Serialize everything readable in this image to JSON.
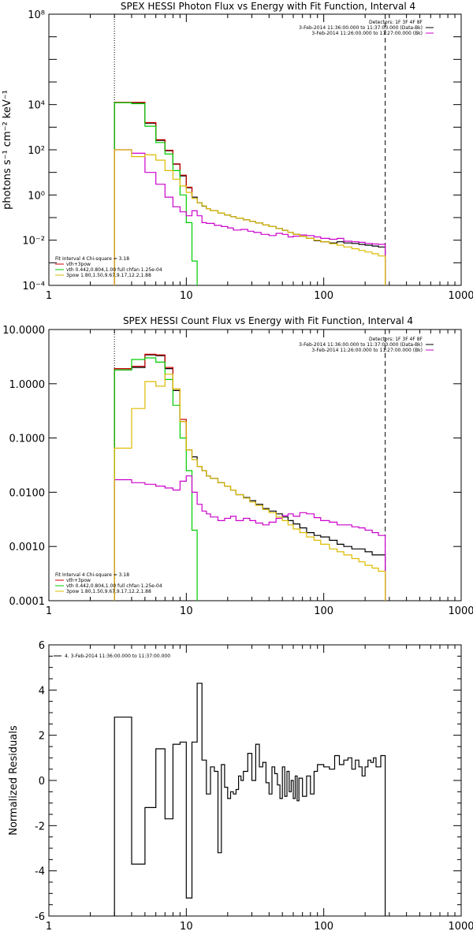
{
  "chart_data": [
    {
      "type": "line",
      "title": "SPEX HESSI Photon Flux vs Energy with Fit Function, Interval 4",
      "xlabel": "",
      "ylabel": "photons s⁻¹ cm⁻² keV⁻¹",
      "xscale": "log",
      "yscale": "log",
      "xlim": [
        1,
        1000
      ],
      "ylim": [
        0.0001,
        100000000
      ],
      "xticks": [
        1,
        10,
        100,
        1000
      ],
      "xtick_labels": [
        "1",
        "10",
        "100",
        "1000"
      ],
      "yticks": [
        0.0001,
        0.01,
        1,
        100,
        10000,
        100000000
      ],
      "ytick_labels": [
        "10⁻⁴",
        "10⁻²",
        "10⁰",
        "10²",
        "10⁴",
        "10⁸"
      ],
      "vlines": [
        {
          "x": 3,
          "style": "dotted"
        },
        {
          "x": 280,
          "style": "dashed"
        }
      ],
      "legend_right": [
        "Detectors: 1F 3F 4F 8F",
        "3-Feb-2014 11:36:00.000 to 11:37:00.000 (Data-Bk)",
        "3-Feb-2014 11:26:00.000 to 11:27:00.000 (Bk)"
      ],
      "legend_left": [
        "Fit Interval 4   Chi-square = 3.18",
        "vth+3pow",
        "vth 0.442,0.804,1.00  full chfan 1.25e-04",
        "3pow 1.80,1.50,9.67,9.17,12.2,1.88"
      ],
      "series": [
        {
          "color": "#000000",
          "x": [
            3,
            4,
            5,
            6,
            7,
            8,
            9,
            10,
            11,
            12,
            13,
            14,
            15,
            17,
            19,
            21,
            23,
            26,
            29,
            32,
            36,
            40,
            45,
            50,
            55,
            60,
            67,
            75,
            85,
            95,
            110,
            125,
            140,
            160,
            180,
            200,
            225,
            250,
            280
          ],
          "y": [
            12000,
            12000,
            1500,
            260,
            90,
            23,
            7,
            2.1,
            0.8,
            0.45,
            0.32,
            0.25,
            0.2,
            0.16,
            0.13,
            0.11,
            0.095,
            0.08,
            0.068,
            0.058,
            0.048,
            0.04,
            0.033,
            0.027,
            0.022,
            0.018,
            0.015,
            0.012,
            0.0095,
            0.0085,
            0.0075,
            0.0085,
            0.0075,
            0.0072,
            0.0065,
            0.006,
            0.0055,
            0.005,
            0.005
          ]
        },
        {
          "color": "#cc0000",
          "x": [
            3,
            4,
            5,
            6,
            7,
            8,
            9,
            10,
            11
          ],
          "y": [
            12500,
            12500,
            1600,
            280,
            95,
            24,
            7.5,
            2.2,
            0.85
          ]
        },
        {
          "color": "#00cc00",
          "x": [
            3,
            4,
            5,
            6,
            7,
            8,
            9,
            10,
            11,
            12
          ],
          "y": [
            12000,
            11000,
            1100,
            210,
            65,
            12,
            1,
            0.06,
            0.0012,
            0.0001
          ]
        },
        {
          "color": "#cc00cc",
          "x": [
            3,
            4,
            5,
            6,
            7,
            8,
            9,
            10,
            11,
            12,
            13,
            14,
            16,
            18,
            20,
            22,
            25,
            28,
            31,
            35,
            40,
            45,
            50,
            55,
            60,
            67,
            75,
            85,
            95,
            110,
            125,
            140,
            160,
            180,
            200,
            225,
            250,
            280
          ],
          "y": [
            100,
            70,
            10,
            3,
            0.8,
            0.3,
            0.18,
            0.12,
            0.2,
            0.12,
            0.06,
            0.055,
            0.045,
            0.04,
            0.035,
            0.028,
            0.03,
            0.025,
            0.022,
            0.018,
            0.016,
            0.02,
            0.018,
            0.014,
            0.015,
            0.017,
            0.016,
            0.014,
            0.012,
            0.011,
            0.012,
            0.009,
            0.0085,
            0.008,
            0.0072,
            0.0068,
            0.0065,
            0.006
          ]
        },
        {
          "color": "#ddbb00",
          "x": [
            3,
            4,
            5,
            6,
            7,
            8,
            9,
            10,
            11,
            12,
            13,
            14,
            15,
            17,
            19,
            21,
            23,
            26,
            29,
            32,
            36,
            40,
            45,
            50,
            55,
            60,
            67,
            75,
            85,
            95,
            110,
            125,
            140,
            160,
            180,
            200,
            225,
            250,
            280
          ],
          "y": [
            100,
            50,
            60,
            35,
            12,
            5,
            2.5,
            1.3,
            0.7,
            0.45,
            0.33,
            0.25,
            0.2,
            0.16,
            0.13,
            0.11,
            0.095,
            0.08,
            0.068,
            0.058,
            0.048,
            0.04,
            0.033,
            0.027,
            0.022,
            0.018,
            0.015,
            0.012,
            0.01,
            0.0085,
            0.007,
            0.006,
            0.005,
            0.0042,
            0.0035,
            0.003,
            0.0025,
            0.002,
            0.0015
          ]
        }
      ]
    },
    {
      "type": "line",
      "title": "SPEX HESSI Count Flux vs Energy with Fit Function, Interval 4",
      "xlabel": "",
      "ylabel": "",
      "xscale": "log",
      "yscale": "log",
      "xlim": [
        1,
        1000
      ],
      "ylim": [
        0.0001,
        10
      ],
      "xticks": [
        1,
        10,
        100,
        1000
      ],
      "xtick_labels": [
        "1",
        "10",
        "100",
        "1000"
      ],
      "yticks": [
        0.0001,
        0.001,
        0.01,
        0.1,
        1,
        10
      ],
      "ytick_labels": [
        "0.0001",
        "0.0010",
        "0.0100",
        "0.1000",
        "1.0000",
        "10.0000"
      ],
      "vlines": [
        {
          "x": 3,
          "style": "dotted"
        },
        {
          "x": 280,
          "style": "dashed"
        }
      ],
      "legend_right": [
        "Detectors: 1F 3F 4F 8F",
        "3-Feb-2014 11:36:00.000 to 11:37:00.000 (Data-Bk)",
        "3-Feb-2014 11:26:00.000 to 11:27:00.000 (Bk)"
      ],
      "legend_left": [
        "Fit Interval 4   Chi-square = 3.18",
        "vth+3pow",
        "vth 0.442,0.804,1.00  full chfan 1.25e-04",
        "3pow 1.80,1.50,9.67,9.17,12.2,1.88"
      ],
      "series": [
        {
          "color": "#000000",
          "x": [
            3,
            4,
            5,
            6,
            7,
            8,
            9,
            10,
            11,
            12,
            13,
            14,
            15,
            17,
            19,
            21,
            23,
            26,
            29,
            32,
            36,
            40,
            45,
            50,
            55,
            60,
            67,
            75,
            85,
            95,
            110,
            125,
            140,
            160,
            180,
            200,
            225,
            250,
            280
          ],
          "y": [
            1.8,
            2.0,
            3.4,
            3.3,
            1.9,
            0.75,
            0.2,
            0.06,
            0.045,
            0.03,
            0.025,
            0.02,
            0.018,
            0.015,
            0.013,
            0.011,
            0.009,
            0.008,
            0.007,
            0.006,
            0.005,
            0.0045,
            0.004,
            0.0035,
            0.003,
            0.0026,
            0.0022,
            0.0018,
            0.0016,
            0.0015,
            0.0013,
            0.0011,
            0.001,
            0.0009,
            0.0009,
            0.0008,
            0.0007,
            0.0007,
            0.0007
          ]
        },
        {
          "color": "#cc0000",
          "x": [
            3,
            4,
            5,
            6,
            7,
            8,
            9,
            10
          ],
          "y": [
            1.9,
            2.1,
            3.5,
            3.4,
            2.0,
            0.8,
            0.22,
            0.065
          ]
        },
        {
          "color": "#00cc00",
          "x": [
            3,
            4,
            5,
            6,
            7,
            8,
            9,
            10,
            11,
            12
          ],
          "y": [
            1.8,
            2.8,
            3.0,
            2.5,
            1.2,
            0.4,
            0.1,
            0.025,
            0.002,
            0.0001
          ]
        },
        {
          "color": "#cc00cc",
          "x": [
            3,
            4,
            5,
            6,
            7,
            8,
            9,
            10,
            11,
            12,
            13,
            14,
            15,
            17,
            19,
            21,
            23,
            26,
            29,
            32,
            36,
            40,
            45,
            50,
            55,
            60,
            67,
            75,
            85,
            95,
            110,
            125,
            140,
            160,
            180,
            200,
            225,
            250,
            280
          ],
          "y": [
            0.017,
            0.015,
            0.014,
            0.013,
            0.012,
            0.011,
            0.016,
            0.02,
            0.01,
            0.006,
            0.0045,
            0.004,
            0.0035,
            0.003,
            0.0033,
            0.0036,
            0.003,
            0.0033,
            0.003,
            0.0027,
            0.0025,
            0.0028,
            0.0033,
            0.0037,
            0.004,
            0.0036,
            0.0042,
            0.004,
            0.0034,
            0.003,
            0.0028,
            0.0025,
            0.0025,
            0.0023,
            0.0022,
            0.002,
            0.0018,
            0.0016,
            0.0013
          ]
        },
        {
          "color": "#ddbb00",
          "x": [
            3,
            4,
            5,
            6,
            7,
            8,
            9,
            10,
            11,
            12,
            13,
            14,
            15,
            17,
            19,
            21,
            23,
            26,
            29,
            32,
            36,
            40,
            45,
            50,
            55,
            60,
            67,
            75,
            85,
            95,
            110,
            125,
            140,
            160,
            180,
            200,
            225,
            250,
            280
          ],
          "y": [
            0.065,
            0.35,
            1.1,
            0.9,
            1.5,
            0.8,
            0.2,
            0.06,
            0.04,
            0.03,
            0.025,
            0.02,
            0.018,
            0.015,
            0.013,
            0.011,
            0.009,
            0.0078,
            0.0066,
            0.0057,
            0.0048,
            0.0042,
            0.0035,
            0.003,
            0.0025,
            0.0021,
            0.0018,
            0.0015,
            0.0013,
            0.0011,
            0.0009,
            0.0008,
            0.0007,
            0.0006,
            0.00052,
            0.00045,
            0.0004,
            0.00035,
            0.0003
          ]
        }
      ]
    },
    {
      "type": "line",
      "title": "",
      "xlabel": "",
      "ylabel": "Normalized Residuals",
      "xscale": "log",
      "yscale": "linear",
      "xlim": [
        1,
        1000
      ],
      "ylim": [
        -6,
        6
      ],
      "xticks": [
        1,
        10,
        100,
        1000
      ],
      "xtick_labels": [
        "1",
        "10",
        "100",
        "1000"
      ],
      "yticks": [
        -6,
        -4,
        -2,
        0,
        2,
        4,
        6
      ],
      "ytick_labels": [
        "-6",
        "-4",
        "-2",
        "0",
        "2",
        "4",
        "6"
      ],
      "legend": [
        "4.  3-Feb-2014 11:36:00.000 to 11:37:00.000"
      ],
      "series": [
        {
          "color": "#000000",
          "edges": [
            3,
            4,
            5,
            6,
            7,
            8,
            9,
            10,
            11,
            12,
            13,
            14,
            15,
            16,
            17,
            18,
            19,
            20,
            21,
            22,
            23,
            24,
            25,
            26,
            28,
            30,
            32,
            34,
            36,
            38,
            40,
            42,
            44,
            46,
            48,
            50,
            52,
            54,
            56,
            58,
            60,
            62,
            64,
            66,
            70,
            75,
            80,
            85,
            90,
            100,
            110,
            120,
            130,
            140,
            150,
            160,
            170,
            180,
            190,
            200,
            210,
            220,
            230,
            240,
            260,
            280
          ],
          "y": [
            2.8,
            -3.7,
            -1.2,
            1.4,
            -1.7,
            1.6,
            1.7,
            -5.2,
            1.7,
            4.3,
            0.9,
            -0.6,
            0.6,
            0.4,
            -3.2,
            0.7,
            -0.3,
            -0.8,
            -0.5,
            -0.6,
            -0.4,
            0.2,
            0.0,
            0.4,
            1.2,
            0.0,
            1.6,
            0.6,
            0.8,
            -0.1,
            -0.6,
            0.6,
            0.3,
            -0.2,
            -0.8,
            0.6,
            -0.7,
            0.4,
            -0.5,
            0.0,
            -0.8,
            0.2,
            -0.9,
            0.1,
            -0.7,
            0.2,
            -0.6,
            0.4,
            0.7,
            0.6,
            0.5,
            1.1,
            0.7,
            0.9,
            1.0,
            0.5,
            0.9,
            0.6,
            0.2,
            0.6,
            0.9,
            0.8,
            1.0,
            0.6,
            1.1
          ]
        }
      ]
    }
  ]
}
